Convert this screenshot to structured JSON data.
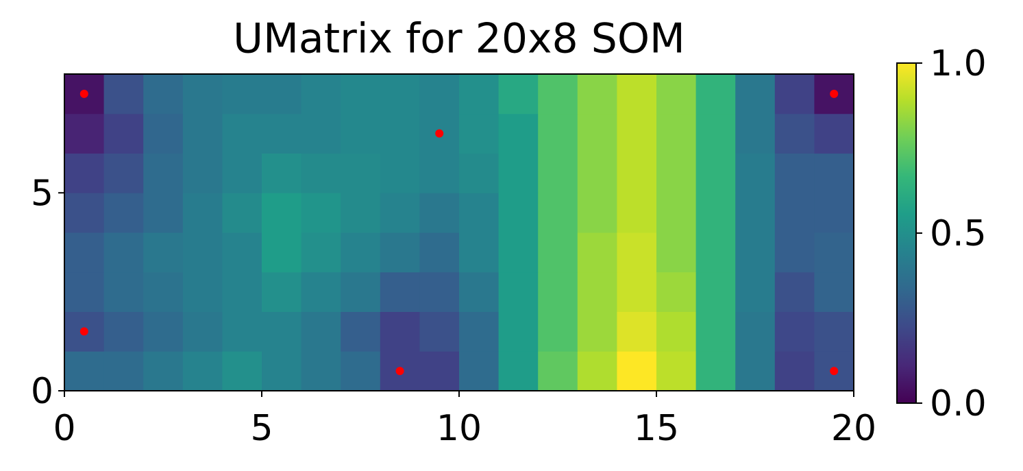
{
  "chart_data": {
    "type": "heatmap",
    "title": "UMatrix for 20x8 SOM",
    "colormap": "viridis",
    "xlim": [
      0,
      20
    ],
    "ylim": [
      0,
      8
    ],
    "xticks": [
      0,
      5,
      10,
      15,
      20
    ],
    "yticks": [
      0,
      5
    ],
    "clim": [
      0,
      1
    ],
    "cticks": [
      {
        "value": 0,
        "label": "0.0"
      },
      0.5,
      {
        "value": 1,
        "label": "1.0"
      }
    ],
    "values": [
      [
        0.35,
        0.35,
        0.4,
        0.45,
        0.5,
        0.45,
        0.4,
        0.35,
        0.2,
        0.2,
        0.35,
        0.55,
        0.75,
        0.88,
        1.0,
        0.9,
        0.65,
        0.4,
        0.2,
        0.25
      ],
      [
        0.25,
        0.3,
        0.35,
        0.4,
        0.45,
        0.45,
        0.4,
        0.3,
        0.2,
        0.25,
        0.35,
        0.55,
        0.72,
        0.85,
        0.95,
        0.88,
        0.65,
        0.4,
        0.22,
        0.25
      ],
      [
        0.3,
        0.35,
        0.38,
        0.42,
        0.45,
        0.5,
        0.45,
        0.4,
        0.3,
        0.3,
        0.4,
        0.55,
        0.72,
        0.85,
        0.92,
        0.85,
        0.65,
        0.42,
        0.25,
        0.32
      ],
      [
        0.3,
        0.35,
        0.4,
        0.42,
        0.45,
        0.55,
        0.5,
        0.45,
        0.4,
        0.35,
        0.45,
        0.55,
        0.72,
        0.85,
        0.92,
        0.82,
        0.65,
        0.42,
        0.3,
        0.32
      ],
      [
        0.25,
        0.3,
        0.35,
        0.42,
        0.48,
        0.55,
        0.52,
        0.48,
        0.45,
        0.4,
        0.45,
        0.55,
        0.72,
        0.82,
        0.9,
        0.82,
        0.65,
        0.42,
        0.3,
        0.3
      ],
      [
        0.2,
        0.25,
        0.35,
        0.4,
        0.45,
        0.5,
        0.48,
        0.48,
        0.47,
        0.45,
        0.48,
        0.55,
        0.72,
        0.82,
        0.9,
        0.82,
        0.65,
        0.42,
        0.3,
        0.3
      ],
      [
        0.1,
        0.2,
        0.33,
        0.4,
        0.45,
        0.45,
        0.45,
        0.47,
        0.47,
        0.45,
        0.5,
        0.55,
        0.72,
        0.82,
        0.9,
        0.82,
        0.65,
        0.4,
        0.25,
        0.2
      ],
      [
        0.05,
        0.25,
        0.35,
        0.4,
        0.42,
        0.42,
        0.45,
        0.47,
        0.47,
        0.45,
        0.5,
        0.6,
        0.72,
        0.82,
        0.9,
        0.82,
        0.65,
        0.4,
        0.2,
        0.05
      ]
    ],
    "points": {
      "color": "#ff0000",
      "x": [
        0.5,
        9.5,
        0.5,
        8.5,
        19.5,
        19.5
      ],
      "y": [
        7.5,
        6.5,
        1.5,
        0.5,
        7.5,
        0.5
      ]
    }
  }
}
